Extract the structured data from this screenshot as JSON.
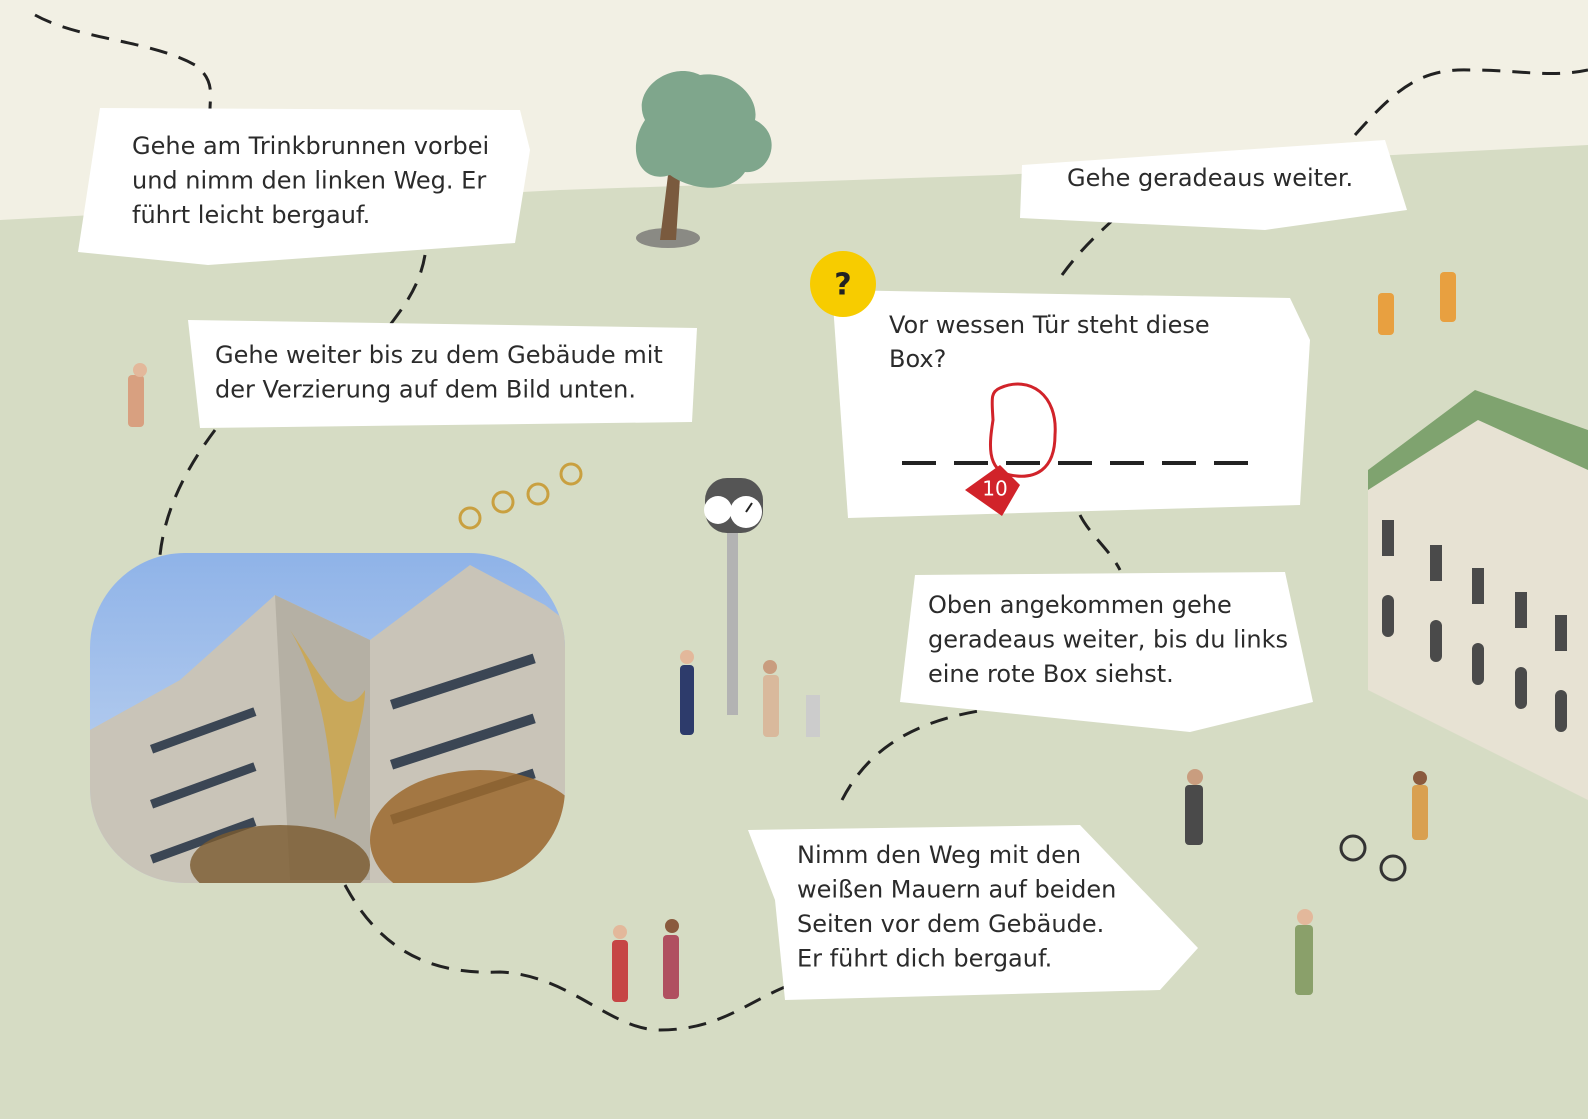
{
  "callouts": [
    {
      "lines": [
        "Gehe am Trinkbrunnen vorbei",
        "und nimm den linken Weg. Er",
        "führt leicht bergauf."
      ]
    },
    {
      "lines": [
        "Gehe weiter bis zu dem Gebäude mit",
        "der Verzierung auf dem Bild unten."
      ]
    },
    {
      "lines": [
        "Gehe geradeaus weiter."
      ]
    },
    {
      "lines": [
        "Oben angekommen gehe",
        "geradeaus weiter, bis du links",
        "eine rote Box siehst."
      ]
    },
    {
      "lines": [
        "Nimm den Weg mit den",
        "weißen Mauern auf beiden",
        "Seiten vor dem Gebäude.",
        "Er führt dich bergauf."
      ]
    }
  ],
  "question": {
    "badge": "?",
    "lines": [
      "Vor wessen Tür steht diese",
      "Box?"
    ],
    "marker": 10
  }
}
